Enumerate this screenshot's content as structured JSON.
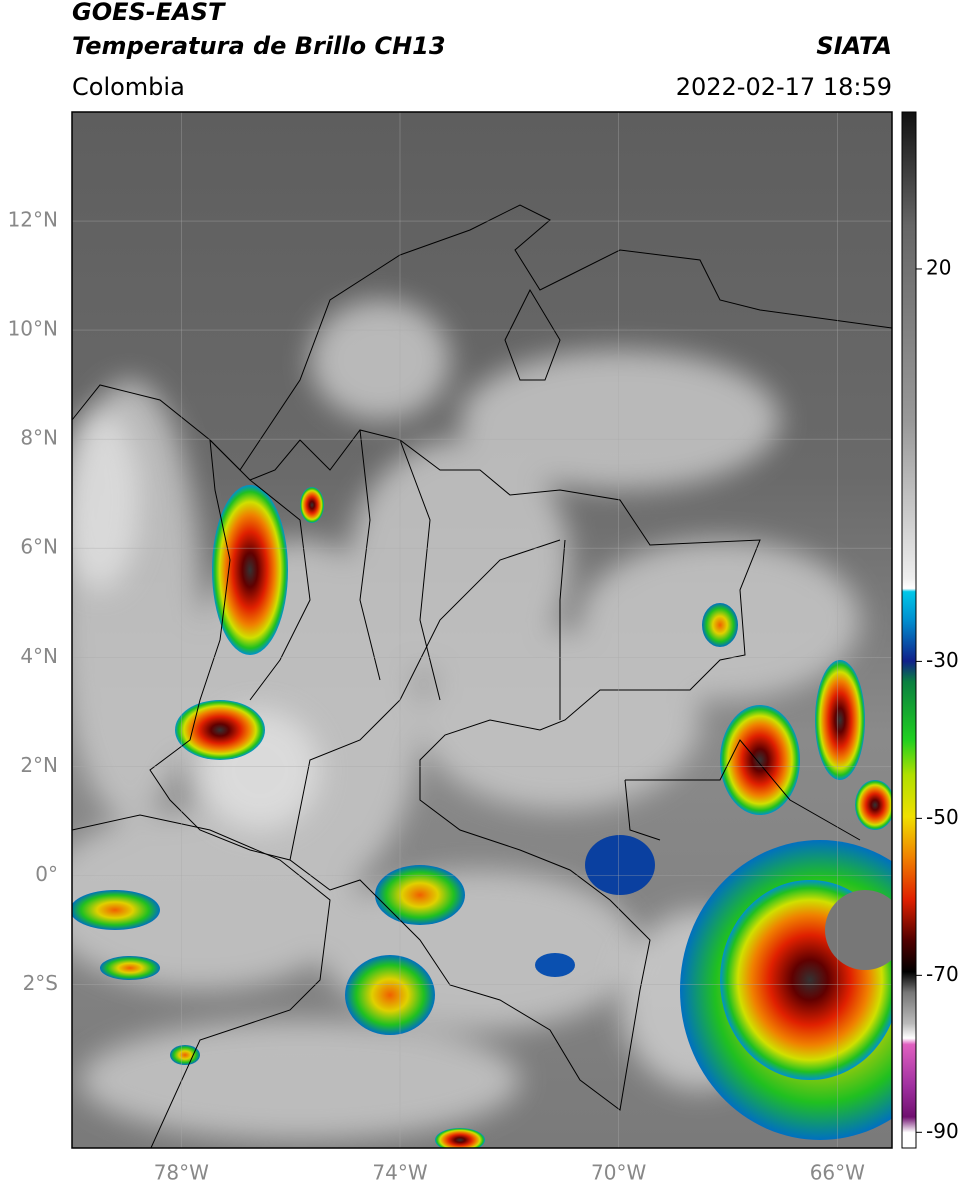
{
  "header": {
    "title": "GOES-EAST",
    "subtitle": "Temperatura de Brillo CH13",
    "source": "SIATA",
    "region": "Colombia",
    "datetime": "2022-02-17 18:59"
  },
  "map": {
    "xlim": [
      -80,
      -65
    ],
    "ylim": [
      -5,
      14
    ],
    "xticks": [
      {
        "value": -78,
        "label": "78°W"
      },
      {
        "value": -74,
        "label": "74°W"
      },
      {
        "value": -70,
        "label": "70°W"
      },
      {
        "value": -66,
        "label": "66°W"
      }
    ],
    "yticks": [
      {
        "value": 12,
        "label": "12°N"
      },
      {
        "value": 10,
        "label": "10°N"
      },
      {
        "value": 8,
        "label": "8°N"
      },
      {
        "value": 6,
        "label": "6°N"
      },
      {
        "value": 4,
        "label": "4°N"
      },
      {
        "value": 2,
        "label": "2°N"
      },
      {
        "value": 0,
        "label": "0°"
      },
      {
        "value": -2,
        "label": "2°S"
      }
    ],
    "grid": true
  },
  "colorbar": {
    "lim": [
      -92,
      40
    ],
    "ticks": [
      20,
      -30,
      -50,
      -70,
      -90
    ]
  }
}
